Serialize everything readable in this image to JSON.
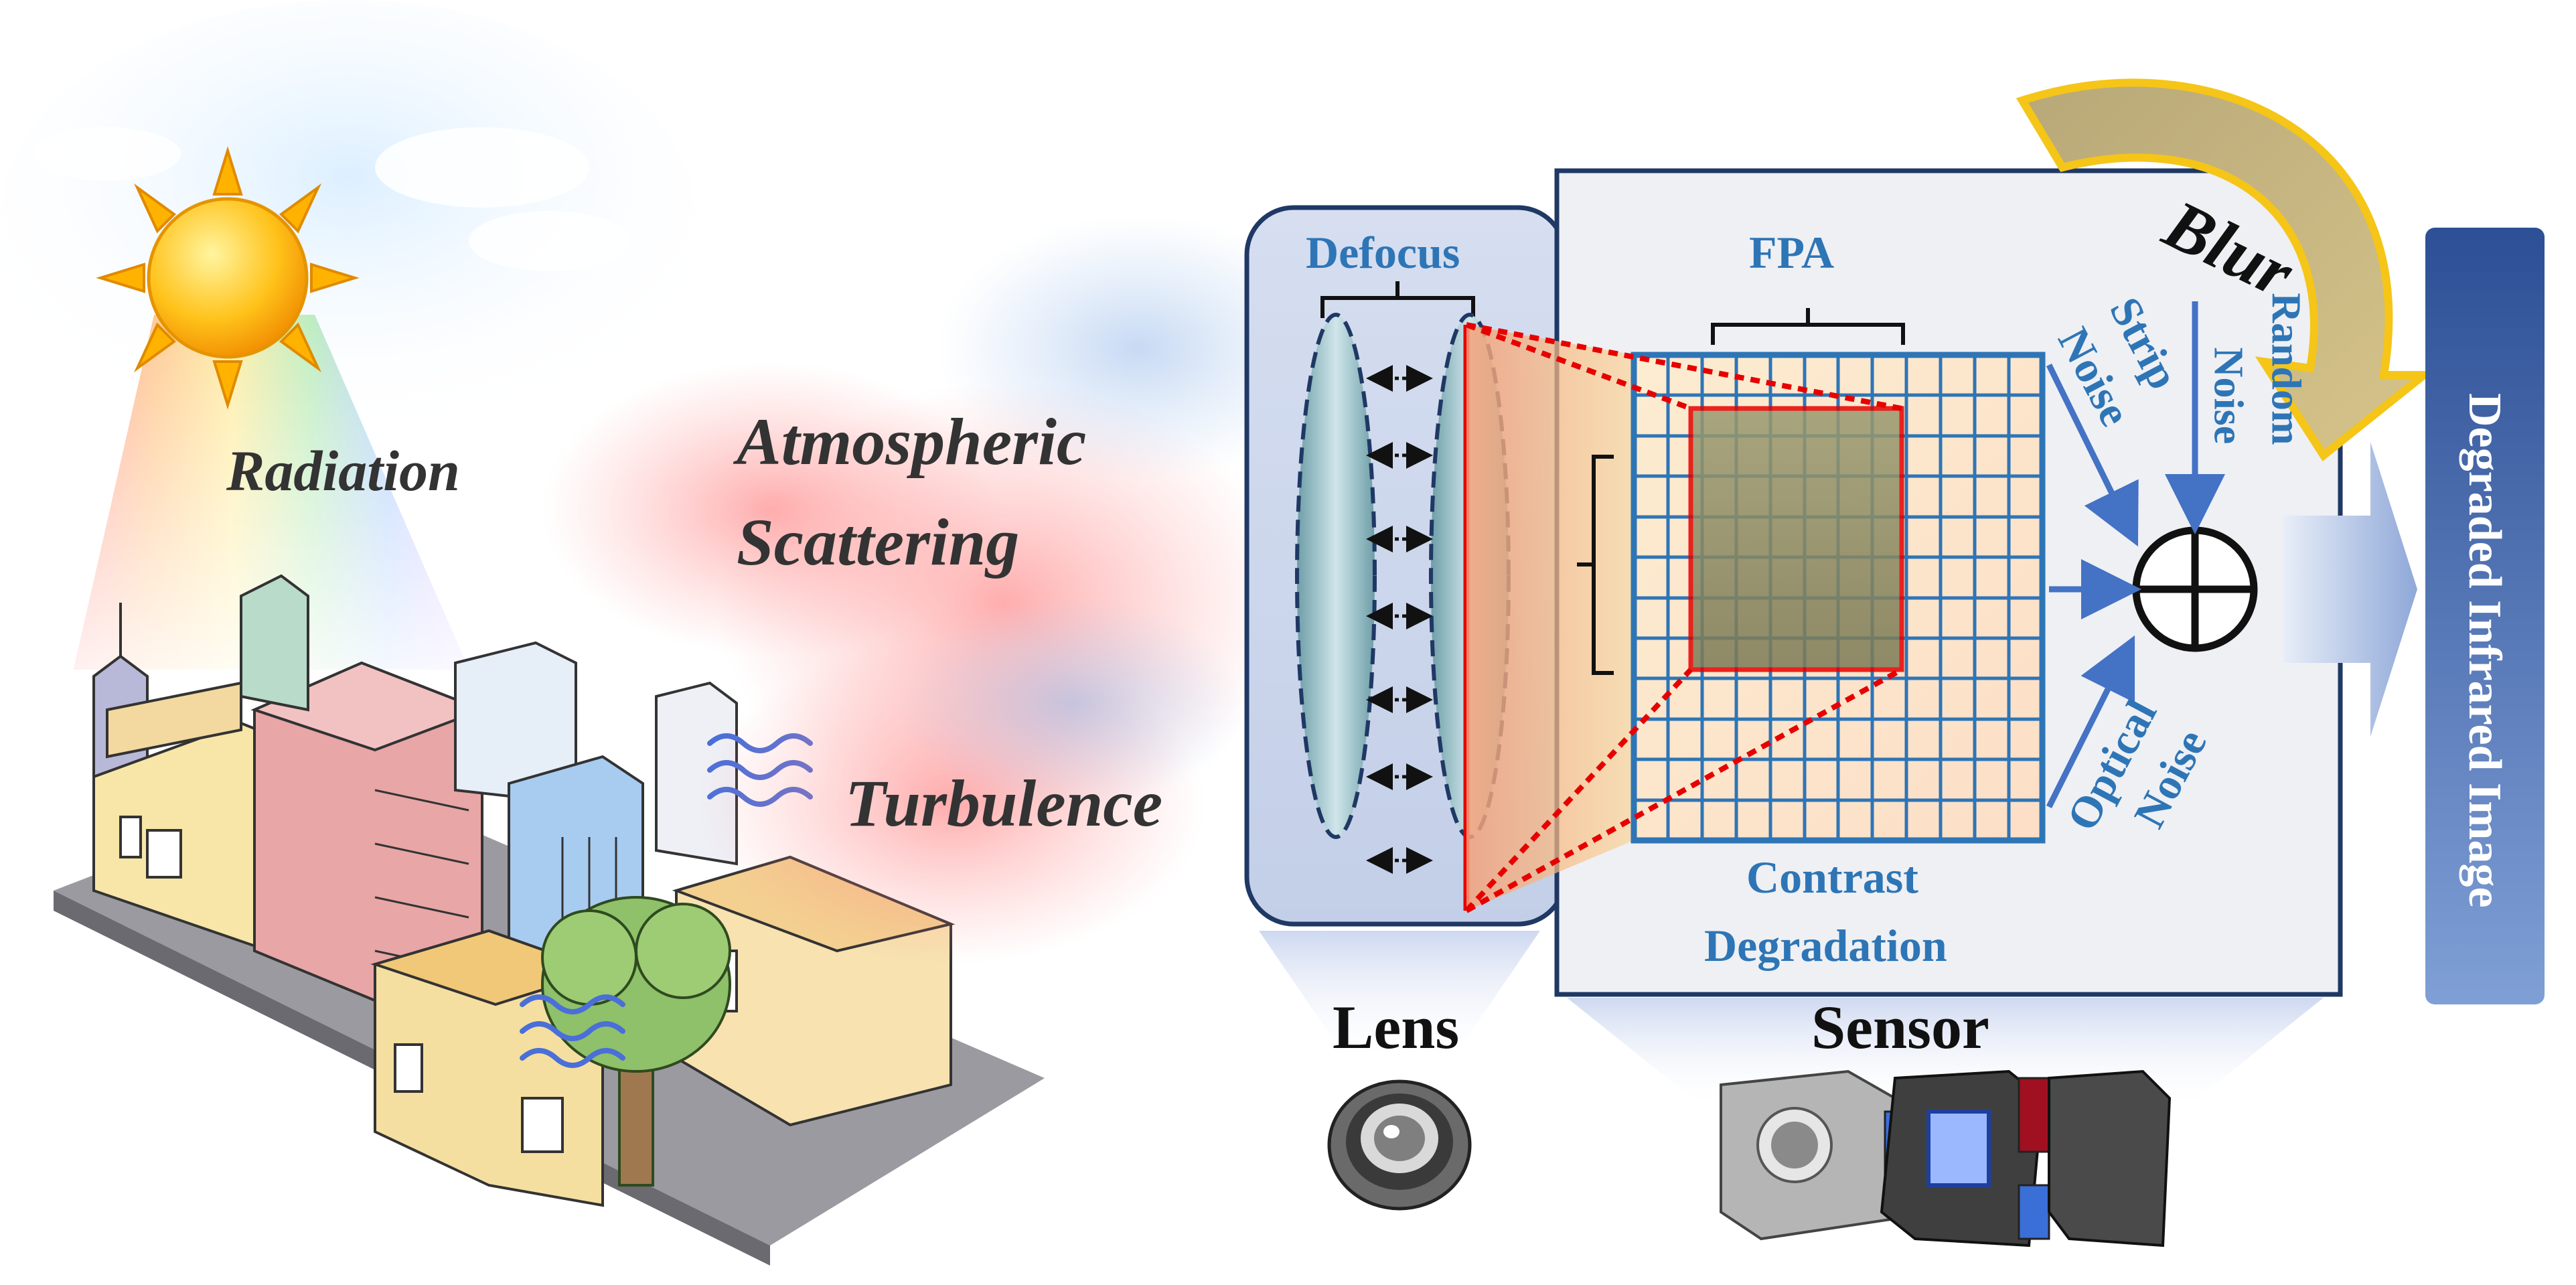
{
  "scene": {
    "radiation_label": "Radiation",
    "atmospheric_label_line1": "Atmospheric",
    "atmospheric_label_line2": "Scattering",
    "turbulence_label": "Turbulence"
  },
  "lens_panel": {
    "defocus_label": "Defocus",
    "lens_label": "Lens"
  },
  "sensor_panel": {
    "fpa_label": "FPA",
    "blur_label": "Blur",
    "strip_noise_line1": "Strip",
    "strip_noise_line2": "Noise",
    "random_noise_line1": "Random",
    "random_noise_line2": "Noise",
    "optical_noise_line1": "Optical",
    "optical_noise_line2": "Noise",
    "contrast_line1": "Contrast",
    "contrast_line2": "Degradation",
    "sensor_label": "Sensor"
  },
  "output": {
    "degraded_label": "Degraded Infrared Image"
  },
  "colors": {
    "label_blue": "#2e75b6",
    "grid_blue": "#2e75b6",
    "panel_border": "#1f3864",
    "red_line": "#e60000",
    "blur_arrow_yellow": "#f5c518",
    "output_bar": "#3a5fa8"
  }
}
